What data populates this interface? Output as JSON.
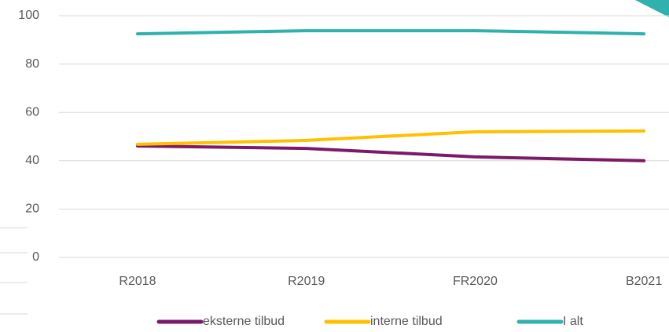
{
  "chart_data": {
    "type": "line",
    "categories": [
      "R2018",
      "R2019",
      "FR2020",
      "B2021"
    ],
    "series": [
      {
        "name": "eksterne tilbud",
        "color": "#7a1a68",
        "values": [
          46.1,
          45.1,
          41.6,
          40
        ]
      },
      {
        "name": "interne tilbud",
        "color": "#ffc000",
        "values": [
          46.8,
          48.4,
          52,
          52.3
        ]
      },
      {
        "name": "I alt",
        "color": "#2fb2ad",
        "values": [
          92.5,
          93.8,
          93.8,
          92.5
        ]
      }
    ],
    "ylim": [
      0,
      100
    ],
    "yticks": [
      0,
      20,
      40,
      60,
      80,
      100
    ],
    "grid": true,
    "legend": "bottom"
  }
}
